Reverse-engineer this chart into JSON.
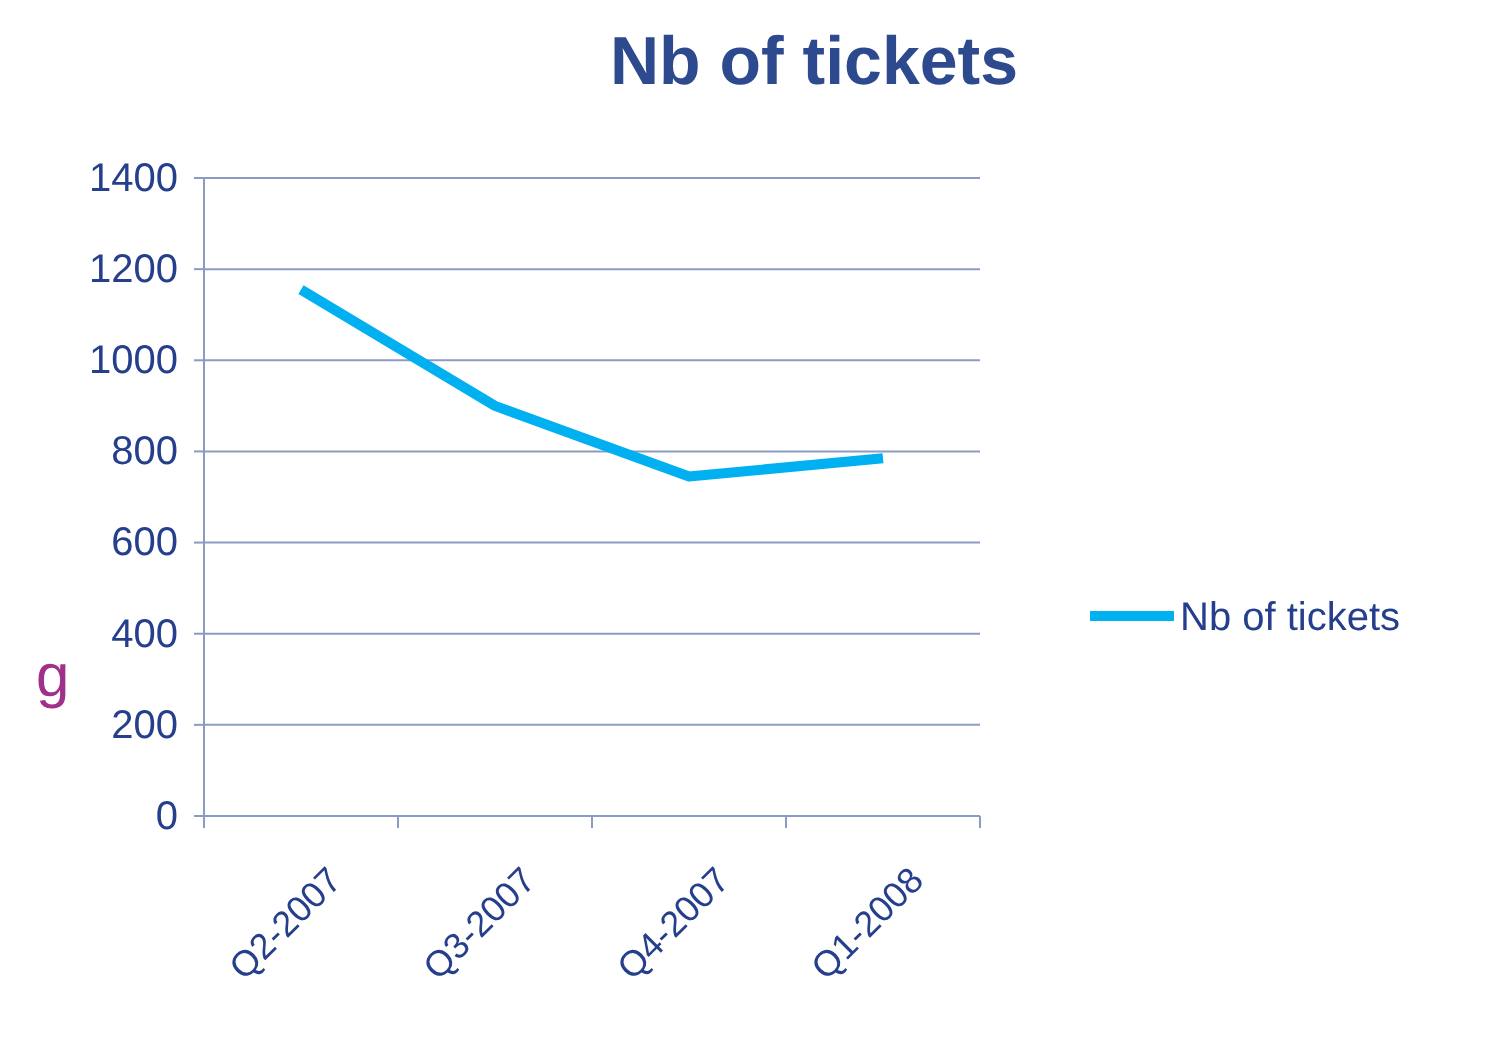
{
  "chart_data": {
    "type": "line",
    "title": "Nb of tickets",
    "categories": [
      "Q2-2007",
      "Q3-2007",
      "Q4-2007",
      "Q1-2008"
    ],
    "series": [
      {
        "name": "Nb of tickets",
        "color": "#00b0f0",
        "values": [
          1155,
          900,
          745,
          785
        ]
      }
    ],
    "ylim": [
      0,
      1400
    ],
    "yticks": [
      0,
      200,
      400,
      600,
      800,
      1000,
      1200,
      1400
    ],
    "grid": "y",
    "legend": "right",
    "marker": "none",
    "line_style": "solid",
    "annotations": [
      "g"
    ]
  }
}
